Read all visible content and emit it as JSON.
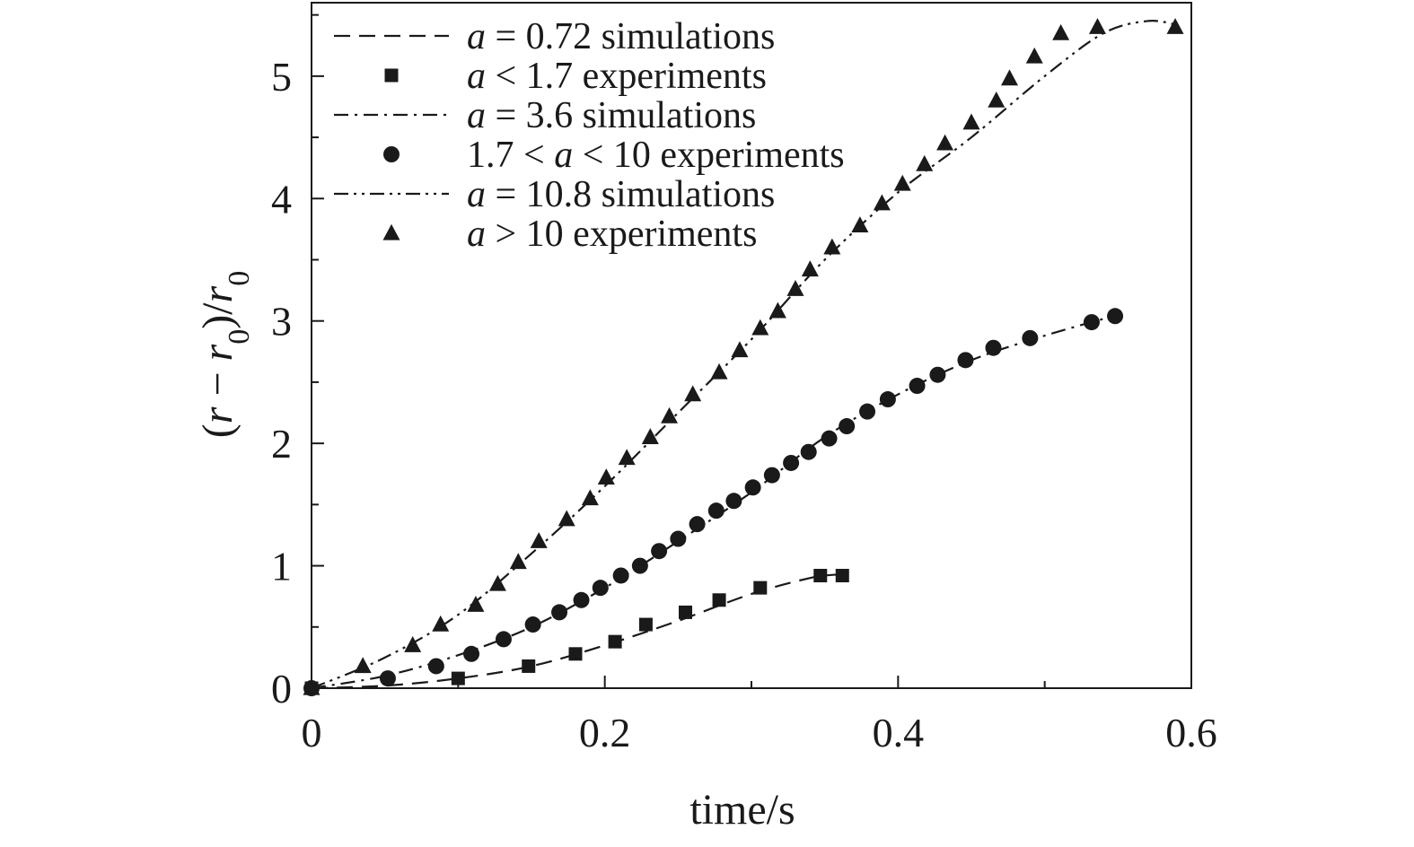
{
  "chart_data": {
    "type": "scatter",
    "xlabel": "time/s",
    "ylabel": "(r − r0)/r0",
    "xlim": [
      0,
      0.6
    ],
    "ylim": [
      0,
      5.6
    ],
    "xticks": [
      "0",
      "0.2",
      "0.4",
      "0.6"
    ],
    "yticks": [
      "0",
      "1",
      "2",
      "3",
      "4",
      "5"
    ],
    "grid": false,
    "legend": {
      "placement": "top-left",
      "frame": false
    },
    "colors": {
      "ink": "#1a1a1a",
      "background": "#ffffff"
    },
    "series": [
      {
        "name": "a = 0.72 simulations",
        "kind": "line",
        "dash": "dashed",
        "x": [
          0,
          0.05,
          0.1,
          0.15,
          0.2,
          0.25,
          0.3,
          0.34,
          0.36
        ],
        "y": [
          0,
          0.02,
          0.08,
          0.18,
          0.35,
          0.55,
          0.77,
          0.9,
          0.93
        ]
      },
      {
        "name": "a < 1.7 experiments",
        "kind": "marker",
        "marker": "square",
        "x": [
          0,
          0.1,
          0.148,
          0.18,
          0.207,
          0.228,
          0.255,
          0.278,
          0.306,
          0.347,
          0.362
        ],
        "y": [
          0,
          0.08,
          0.18,
          0.28,
          0.38,
          0.52,
          0.62,
          0.72,
          0.82,
          0.92,
          0.92
        ]
      },
      {
        "name": "a = 3.6 simulations",
        "kind": "line",
        "dash": "dashdot",
        "x": [
          0,
          0.05,
          0.1,
          0.15,
          0.2,
          0.25,
          0.3,
          0.35,
          0.4,
          0.45,
          0.5,
          0.55
        ],
        "y": [
          0,
          0.1,
          0.27,
          0.5,
          0.82,
          1.2,
          1.6,
          2.05,
          2.4,
          2.68,
          2.88,
          3.05
        ]
      },
      {
        "name": "1.7 < a < 10 experiments",
        "kind": "marker",
        "marker": "circle",
        "x": [
          0,
          0.052,
          0.085,
          0.109,
          0.131,
          0.151,
          0.169,
          0.184,
          0.197,
          0.211,
          0.224,
          0.237,
          0.25,
          0.263,
          0.276,
          0.288,
          0.301,
          0.314,
          0.327,
          0.339,
          0.353,
          0.365,
          0.379,
          0.393,
          0.413,
          0.427,
          0.446,
          0.465,
          0.49,
          0.532,
          0.548
        ],
        "y": [
          0,
          0.08,
          0.18,
          0.28,
          0.4,
          0.52,
          0.62,
          0.72,
          0.82,
          0.92,
          1.0,
          1.12,
          1.22,
          1.34,
          1.45,
          1.53,
          1.64,
          1.74,
          1.84,
          1.93,
          2.04,
          2.14,
          2.26,
          2.36,
          2.47,
          2.56,
          2.68,
          2.78,
          2.86,
          2.99,
          3.04
        ]
      },
      {
        "name": "a = 10.8 simulations",
        "kind": "line",
        "dash": "dashdotdot",
        "x": [
          0,
          0.05,
          0.1,
          0.15,
          0.2,
          0.25,
          0.3,
          0.35,
          0.4,
          0.45,
          0.5,
          0.54,
          0.57,
          0.59
        ],
        "y": [
          0,
          0.25,
          0.6,
          1.1,
          1.65,
          2.25,
          2.85,
          3.5,
          4.05,
          4.5,
          5.0,
          5.35,
          5.45,
          5.42
        ]
      },
      {
        "name": "a > 10 experiments",
        "kind": "marker",
        "marker": "triangle",
        "x": [
          0,
          0.035,
          0.069,
          0.088,
          0.112,
          0.127,
          0.141,
          0.155,
          0.174,
          0.19,
          0.201,
          0.215,
          0.231,
          0.244,
          0.26,
          0.278,
          0.292,
          0.306,
          0.318,
          0.33,
          0.34,
          0.355,
          0.374,
          0.389,
          0.403,
          0.418,
          0.432,
          0.45,
          0.467,
          0.476,
          0.493,
          0.511,
          0.536,
          0.589
        ],
        "y": [
          0,
          0.18,
          0.35,
          0.52,
          0.68,
          0.85,
          1.03,
          1.2,
          1.38,
          1.55,
          1.72,
          1.88,
          2.05,
          2.22,
          2.4,
          2.58,
          2.76,
          2.94,
          3.08,
          3.26,
          3.42,
          3.6,
          3.78,
          3.96,
          4.12,
          4.28,
          4.45,
          4.62,
          4.8,
          4.98,
          5.16,
          5.35,
          5.4,
          5.4
        ]
      }
    ]
  }
}
